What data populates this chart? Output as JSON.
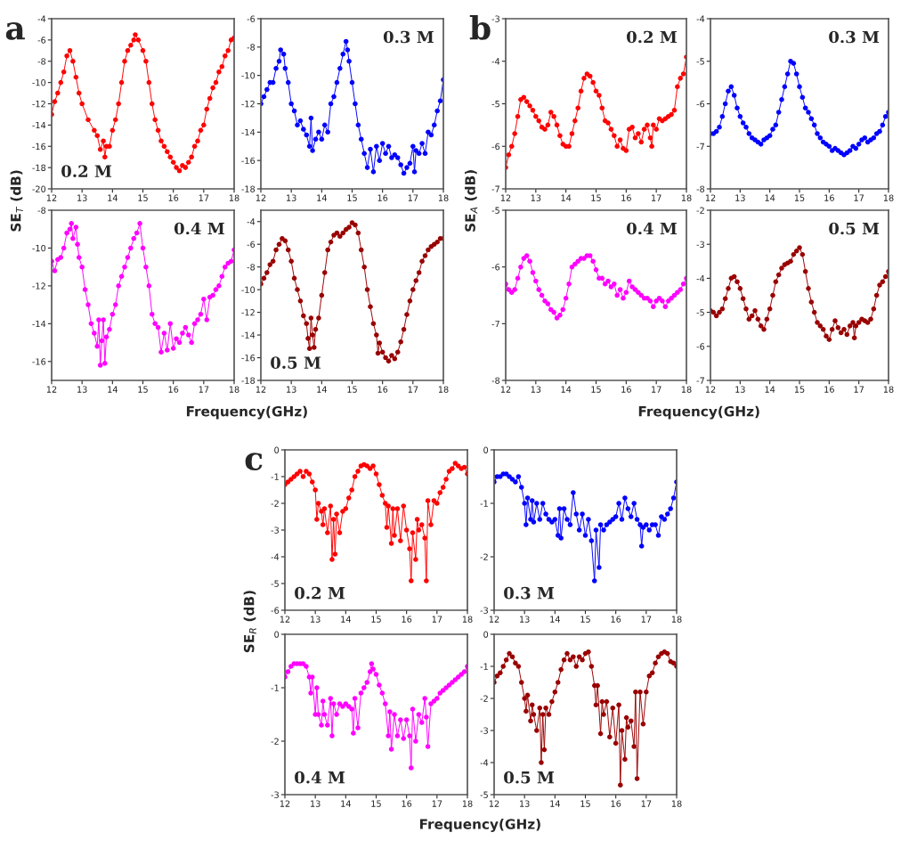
{
  "chart_data": [
    {
      "type": "line",
      "marker": "circle",
      "line_style": "solid",
      "grid": false,
      "ylabel": "SE$_{T}$ (dB)",
      "annotations": [
        "a"
      ],
      "xlim": [
        12,
        18
      ],
      "xticks": [
        12,
        13,
        14,
        15,
        16,
        17,
        18
      ],
      "ylim": [
        -20,
        -4
      ],
      "yticks": [
        -20,
        -18,
        -16,
        -14,
        -12,
        -10,
        -8,
        -6,
        -4
      ],
      "series": [
        {
          "name": "0.2 M",
          "color": "#ff0000",
          "x": [
            12.0,
            12.1,
            12.2,
            12.3,
            12.4,
            12.5,
            12.6,
            12.7,
            12.8,
            12.9,
            13.0,
            13.2,
            13.4,
            13.5,
            13.6,
            13.7,
            13.75,
            13.8,
            13.9,
            14.0,
            14.1,
            14.2,
            14.3,
            14.4,
            14.5,
            14.6,
            14.7,
            14.75,
            14.85,
            15.0,
            15.1,
            15.2,
            15.3,
            15.4,
            15.5,
            15.6,
            15.7,
            15.8,
            15.9,
            16.0,
            16.1,
            16.2,
            16.3,
            16.4,
            16.5,
            16.6,
            16.7,
            16.8,
            16.9,
            17.0,
            17.1,
            17.2,
            17.3,
            17.4,
            17.5,
            17.6,
            17.7,
            17.8,
            17.9,
            18.0
          ],
          "values": [
            -13,
            -11.8,
            -11,
            -10,
            -9,
            -7.5,
            -7,
            -8,
            -9.5,
            -11,
            -12,
            -13.5,
            -14.5,
            -15,
            -16.3,
            -15.5,
            -17,
            -16,
            -16,
            -14.5,
            -13.5,
            -12,
            -10,
            -8,
            -7,
            -6.5,
            -6,
            -5.5,
            -6,
            -7,
            -8,
            -10,
            -12,
            -13.5,
            -14.5,
            -15.5,
            -16,
            -16.5,
            -17,
            -17.5,
            -18,
            -18.3,
            -17.8,
            -18,
            -17.5,
            -17,
            -16,
            -15.5,
            -14.5,
            -14,
            -12.5,
            -11.5,
            -10.5,
            -10,
            -9,
            -8.5,
            -7.5,
            -7,
            -6,
            -5.8
          ]
        }
      ]
    },
    {
      "type": "line",
      "marker": "circle",
      "line_style": "solid",
      "grid": false,
      "xlim": [
        12,
        18
      ],
      "xticks": [
        12,
        13,
        14,
        15,
        16,
        17,
        18
      ],
      "ylim": [
        -18,
        -6
      ],
      "yticks": [
        -18,
        -16,
        -14,
        -12,
        -10,
        -8,
        -6
      ],
      "series": [
        {
          "name": "0.3 M",
          "color": "#0000ff",
          "x": [
            12.0,
            12.1,
            12.2,
            12.3,
            12.4,
            12.5,
            12.6,
            12.65,
            12.75,
            12.8,
            12.9,
            13.0,
            13.1,
            13.2,
            13.3,
            13.4,
            13.5,
            13.6,
            13.65,
            13.7,
            13.8,
            13.9,
            14.0,
            14.1,
            14.2,
            14.3,
            14.4,
            14.5,
            14.6,
            14.7,
            14.8,
            14.85,
            14.9,
            15.0,
            15.1,
            15.2,
            15.3,
            15.4,
            15.5,
            15.6,
            15.7,
            15.8,
            15.9,
            16.0,
            16.1,
            16.2,
            16.3,
            16.4,
            16.5,
            16.6,
            16.7,
            16.8,
            16.9,
            17.0,
            17.05,
            17.1,
            17.2,
            17.3,
            17.4,
            17.5,
            17.6,
            17.7,
            17.8,
            17.9,
            18.0
          ],
          "values": [
            -12,
            -11.5,
            -11,
            -10.5,
            -10.5,
            -9.5,
            -9,
            -8.2,
            -8.5,
            -9.5,
            -10.5,
            -12,
            -12.5,
            -13.5,
            -13.2,
            -13.8,
            -14.2,
            -15,
            -13,
            -15.3,
            -14.5,
            -14,
            -14.5,
            -13.5,
            -14,
            -12,
            -11.5,
            -10.5,
            -9.5,
            -8.5,
            -7.6,
            -8.2,
            -9,
            -10.5,
            -12,
            -13.5,
            -14.5,
            -15.5,
            -16.5,
            -15.2,
            -16.8,
            -15,
            -16,
            -14.8,
            -15.5,
            -15,
            -15.8,
            -15.6,
            -15.8,
            -16.3,
            -16.9,
            -16.5,
            -16.2,
            -15,
            -16.8,
            -15.3,
            -15.5,
            -14.8,
            -15.5,
            -14,
            -14.2,
            -13.5,
            -12.5,
            -11.8,
            -10.3
          ]
        }
      ]
    },
    {
      "type": "line",
      "marker": "circle",
      "line_style": "solid",
      "grid": false,
      "xlabel": "Frequency(GHz)",
      "xlim": [
        12,
        18
      ],
      "xticks": [
        12,
        13,
        14,
        15,
        16,
        17,
        18
      ],
      "ylim": [
        -17,
        -8
      ],
      "yticks": [
        -16,
        -14,
        -12,
        -10,
        -8
      ],
      "series": [
        {
          "name": "0.4 M",
          "color": "#ff00ff",
          "x": [
            12.0,
            12.1,
            12.2,
            12.3,
            12.4,
            12.5,
            12.6,
            12.65,
            12.7,
            12.8,
            12.85,
            12.9,
            13.0,
            13.1,
            13.2,
            13.3,
            13.4,
            13.5,
            13.55,
            13.6,
            13.65,
            13.7,
            13.75,
            13.8,
            13.9,
            14.0,
            14.1,
            14.2,
            14.3,
            14.4,
            14.5,
            14.6,
            14.7,
            14.8,
            14.9,
            15.0,
            15.1,
            15.2,
            15.3,
            15.4,
            15.5,
            15.6,
            15.7,
            15.8,
            15.9,
            16.0,
            16.1,
            16.2,
            16.3,
            16.4,
            16.5,
            16.6,
            16.7,
            16.8,
            16.9,
            17.0,
            17.1,
            17.2,
            17.3,
            17.4,
            17.5,
            17.6,
            17.7,
            17.8,
            17.9,
            18.0
          ],
          "values": [
            -10.7,
            -11.2,
            -10.6,
            -10.5,
            -10,
            -9.2,
            -9,
            -8.7,
            -9.5,
            -8.9,
            -9.8,
            -10.5,
            -11,
            -12.2,
            -13,
            -14,
            -14.5,
            -15.2,
            -13.8,
            -16.2,
            -14.9,
            -13.8,
            -16.1,
            -14.7,
            -14.3,
            -13.5,
            -13,
            -12,
            -11.5,
            -11,
            -10.5,
            -10,
            -9.5,
            -9.2,
            -8.7,
            -10,
            -11,
            -12,
            -13.5,
            -14,
            -14.2,
            -15.5,
            -14.5,
            -15.4,
            -14,
            -15.3,
            -14.8,
            -15,
            -14.5,
            -14.2,
            -14.6,
            -15,
            -14,
            -13.8,
            -13.5,
            -12.7,
            -13.8,
            -12.6,
            -12.5,
            -12.2,
            -12,
            -11.5,
            -11,
            -10.8,
            -10.7,
            -10.1
          ]
        }
      ]
    },
    {
      "type": "line",
      "marker": "circle",
      "line_style": "solid",
      "grid": false,
      "xlim": [
        12,
        18
      ],
      "xticks": [
        12,
        13,
        14,
        15,
        16,
        17,
        18
      ],
      "ylim": [
        -18,
        -3
      ],
      "yticks": [
        -18,
        -16,
        -14,
        -12,
        -10,
        -8,
        -6,
        -4
      ],
      "series": [
        {
          "name": "0.5 M",
          "color": "#990000",
          "x": [
            12.0,
            12.1,
            12.2,
            12.3,
            12.4,
            12.5,
            12.6,
            12.7,
            12.8,
            12.9,
            13.0,
            13.1,
            13.2,
            13.3,
            13.4,
            13.5,
            13.55,
            13.6,
            13.65,
            13.7,
            13.75,
            13.8,
            13.9,
            14.0,
            14.1,
            14.2,
            14.3,
            14.4,
            14.5,
            14.6,
            14.7,
            14.8,
            14.9,
            15.0,
            15.1,
            15.2,
            15.3,
            15.4,
            15.5,
            15.6,
            15.7,
            15.8,
            15.85,
            15.9,
            16.0,
            16.1,
            16.2,
            16.3,
            16.4,
            16.5,
            16.6,
            16.7,
            16.8,
            16.9,
            17.0,
            17.1,
            17.2,
            17.3,
            17.4,
            17.5,
            17.6,
            17.7,
            17.8,
            17.9,
            18.0
          ],
          "values": [
            -9.5,
            -9,
            -8.5,
            -7.8,
            -7.5,
            -6.5,
            -6,
            -5.5,
            -5.7,
            -6.5,
            -7.5,
            -9,
            -10,
            -11,
            -12.3,
            -13,
            -14.3,
            -15.2,
            -12.5,
            -14,
            -15.1,
            -13.5,
            -12.5,
            -10.5,
            -8.5,
            -6.5,
            -5.8,
            -5.2,
            -5,
            -5.3,
            -5,
            -4.7,
            -4.5,
            -4.1,
            -4.3,
            -5,
            -6.5,
            -8,
            -10,
            -11.5,
            -13,
            -14,
            -15.6,
            -14.7,
            -15.5,
            -16,
            -16.3,
            -15.8,
            -16.1,
            -15.5,
            -14.6,
            -13.5,
            -12.2,
            -11,
            -10,
            -9.2,
            -8.5,
            -7.5,
            -7,
            -6.5,
            -6.2,
            -6,
            -5.8,
            -5.5,
            -5.5
          ]
        }
      ]
    },
    {
      "type": "line",
      "marker": "circle",
      "line_style": "solid",
      "grid": false,
      "ylabel": "SE$_{A}$ (dB)",
      "annotations": [
        "b"
      ],
      "xlim": [
        12,
        18
      ],
      "xticks": [
        12,
        13,
        14,
        15,
        16,
        17,
        18
      ],
      "ylim": [
        -7,
        -3
      ],
      "yticks": [
        -7,
        -6,
        -5,
        -4,
        -3
      ],
      "series": [
        {
          "name": "0.2 M",
          "color": "#ff0000",
          "x": [
            12.0,
            12.1,
            12.2,
            12.3,
            12.4,
            12.5,
            12.6,
            12.7,
            12.8,
            12.9,
            13.0,
            13.1,
            13.2,
            13.3,
            13.4,
            13.5,
            13.6,
            13.7,
            13.8,
            13.9,
            14.0,
            14.1,
            14.2,
            14.3,
            14.4,
            14.5,
            14.6,
            14.7,
            14.8,
            14.9,
            15.0,
            15.1,
            15.2,
            15.3,
            15.4,
            15.5,
            15.6,
            15.7,
            15.8,
            15.9,
            16.0,
            16.1,
            16.2,
            16.3,
            16.4,
            16.5,
            16.6,
            16.7,
            16.8,
            16.85,
            16.9,
            17.0,
            17.1,
            17.2,
            17.3,
            17.4,
            17.5,
            17.6,
            17.7,
            17.8,
            17.9,
            18.0
          ],
          "values": [
            -6.5,
            -6.2,
            -6,
            -5.7,
            -5.3,
            -4.9,
            -4.85,
            -4.95,
            -5.05,
            -5.15,
            -5.3,
            -5.4,
            -5.55,
            -5.6,
            -5.5,
            -5.2,
            -5.3,
            -5.5,
            -5.75,
            -5.95,
            -6,
            -6,
            -5.7,
            -5.4,
            -5.1,
            -4.7,
            -4.4,
            -4.3,
            -4.35,
            -4.5,
            -4.7,
            -4.8,
            -5.1,
            -5.4,
            -5.45,
            -5.6,
            -5.75,
            -6,
            -5.85,
            -6.05,
            -6.1,
            -5.6,
            -5.55,
            -5.8,
            -5.7,
            -5.9,
            -5.6,
            -5.5,
            -5.8,
            -6,
            -5.5,
            -5.6,
            -5.35,
            -5.4,
            -5.35,
            -5.3,
            -5.25,
            -5.15,
            -4.6,
            -4.4,
            -4.3,
            -3.9
          ]
        }
      ]
    },
    {
      "type": "line",
      "marker": "circle",
      "line_style": "solid",
      "grid": false,
      "xlim": [
        12,
        18
      ],
      "xticks": [
        12,
        13,
        14,
        15,
        16,
        17,
        18
      ],
      "ylim": [
        -8,
        -4
      ],
      "yticks": [
        -8,
        -7,
        -6,
        -5,
        -4
      ],
      "series": [
        {
          "name": "0.3 M",
          "color": "#0000ff",
          "x": [
            12.0,
            12.1,
            12.2,
            12.3,
            12.4,
            12.5,
            12.6,
            12.7,
            12.8,
            12.9,
            13.0,
            13.1,
            13.2,
            13.3,
            13.4,
            13.5,
            13.6,
            13.7,
            13.8,
            13.9,
            14.0,
            14.1,
            14.2,
            14.3,
            14.4,
            14.5,
            14.6,
            14.7,
            14.8,
            14.9,
            15.0,
            15.1,
            15.2,
            15.3,
            15.4,
            15.5,
            15.6,
            15.7,
            15.8,
            15.9,
            16.0,
            16.1,
            16.2,
            16.3,
            16.4,
            16.5,
            16.6,
            16.7,
            16.8,
            16.9,
            17.0,
            17.1,
            17.2,
            17.3,
            17.4,
            17.5,
            17.6,
            17.7,
            17.8,
            17.9,
            18.0
          ],
          "values": [
            -6.7,
            -6.7,
            -6.65,
            -6.55,
            -6.3,
            -6.0,
            -5.7,
            -5.6,
            -5.8,
            -6.1,
            -6.3,
            -6.45,
            -6.55,
            -6.7,
            -6.8,
            -6.85,
            -6.9,
            -6.95,
            -6.85,
            -6.8,
            -6.75,
            -6.6,
            -6.5,
            -6.2,
            -5.9,
            -5.6,
            -5.3,
            -5.0,
            -5.05,
            -5.3,
            -5.6,
            -5.85,
            -6.1,
            -6.2,
            -6.35,
            -6.5,
            -6.7,
            -6.8,
            -6.9,
            -6.95,
            -7.0,
            -7.1,
            -7.05,
            -7.1,
            -7.15,
            -7.2,
            -7.15,
            -7.1,
            -7.0,
            -7.05,
            -6.95,
            -6.85,
            -6.8,
            -6.9,
            -6.85,
            -6.8,
            -6.7,
            -6.65,
            -6.5,
            -6.3,
            -6.2
          ]
        }
      ]
    },
    {
      "type": "line",
      "marker": "circle",
      "line_style": "solid",
      "grid": false,
      "xlabel": "Frequency(GHz)",
      "xlim": [
        12,
        18
      ],
      "xticks": [
        12,
        13,
        14,
        15,
        16,
        17,
        18
      ],
      "ylim": [
        -8,
        -5
      ],
      "yticks": [
        -8,
        -7,
        -6,
        -5
      ],
      "series": [
        {
          "name": "0.4 M",
          "color": "#ff00ff",
          "x": [
            12.0,
            12.1,
            12.2,
            12.3,
            12.4,
            12.5,
            12.6,
            12.7,
            12.8,
            12.9,
            13.0,
            13.1,
            13.2,
            13.3,
            13.4,
            13.5,
            13.6,
            13.7,
            13.8,
            13.9,
            14.0,
            14.1,
            14.2,
            14.3,
            14.4,
            14.5,
            14.6,
            14.7,
            14.8,
            14.9,
            15.0,
            15.1,
            15.2,
            15.3,
            15.4,
            15.5,
            15.6,
            15.7,
            15.8,
            15.9,
            16.0,
            16.1,
            16.2,
            16.3,
            16.4,
            16.5,
            16.6,
            16.7,
            16.8,
            16.9,
            17.0,
            17.1,
            17.2,
            17.3,
            17.4,
            17.5,
            17.6,
            17.7,
            17.8,
            17.9,
            18.0
          ],
          "values": [
            -6.3,
            -6.4,
            -6.45,
            -6.4,
            -6.2,
            -6,
            -5.85,
            -5.8,
            -5.9,
            -6.1,
            -6.25,
            -6.4,
            -6.5,
            -6.6,
            -6.65,
            -6.75,
            -6.8,
            -6.9,
            -6.85,
            -6.75,
            -6.55,
            -6.3,
            -6.0,
            -5.95,
            -5.9,
            -5.85,
            -5.85,
            -5.8,
            -5.8,
            -5.9,
            -6.05,
            -6.2,
            -6.2,
            -6.3,
            -6.25,
            -6.35,
            -6.3,
            -6.5,
            -6.4,
            -6.55,
            -6.45,
            -6.25,
            -6.35,
            -6.4,
            -6.45,
            -6.5,
            -6.55,
            -6.55,
            -6.6,
            -6.7,
            -6.6,
            -6.55,
            -6.6,
            -6.7,
            -6.6,
            -6.55,
            -6.5,
            -6.45,
            -6.4,
            -6.3,
            -6.2
          ]
        }
      ]
    },
    {
      "type": "line",
      "marker": "circle",
      "line_style": "solid",
      "grid": false,
      "xlim": [
        12,
        18
      ],
      "xticks": [
        12,
        13,
        14,
        15,
        16,
        17,
        18
      ],
      "ylim": [
        -7,
        -2
      ],
      "yticks": [
        -7,
        -6,
        -5,
        -4,
        -3,
        -2
      ],
      "series": [
        {
          "name": "0.5 M",
          "color": "#990000",
          "x": [
            12.0,
            12.1,
            12.2,
            12.3,
            12.4,
            12.5,
            12.6,
            12.7,
            12.8,
            12.9,
            13.0,
            13.1,
            13.2,
            13.3,
            13.4,
            13.5,
            13.6,
            13.7,
            13.8,
            13.9,
            14.0,
            14.1,
            14.2,
            14.3,
            14.4,
            14.5,
            14.6,
            14.7,
            14.8,
            14.9,
            15.0,
            15.1,
            15.2,
            15.3,
            15.4,
            15.5,
            15.6,
            15.7,
            15.8,
            15.9,
            16.0,
            16.1,
            16.2,
            16.3,
            16.4,
            16.5,
            16.6,
            16.7,
            16.8,
            16.85,
            16.9,
            17.0,
            17.1,
            17.2,
            17.3,
            17.4,
            17.5,
            17.6,
            17.7,
            17.8,
            17.9,
            18.0
          ],
          "values": [
            -4.95,
            -5.0,
            -5.1,
            -5.0,
            -4.9,
            -4.6,
            -4.3,
            -4.0,
            -3.95,
            -4.1,
            -4.3,
            -4.6,
            -4.9,
            -5.2,
            -5.1,
            -4.95,
            -5.2,
            -5.4,
            -5.5,
            -5.2,
            -4.9,
            -4.5,
            -4.1,
            -3.9,
            -3.7,
            -3.6,
            -3.55,
            -3.5,
            -3.3,
            -3.2,
            -3.1,
            -3.3,
            -3.8,
            -4.3,
            -4.7,
            -5.0,
            -5.3,
            -5.4,
            -5.5,
            -5.7,
            -5.8,
            -5.5,
            -5.25,
            -5.45,
            -5.6,
            -5.5,
            -5.65,
            -5.4,
            -5.3,
            -5.75,
            -5.4,
            -5.3,
            -5.2,
            -5.25,
            -5.3,
            -5.2,
            -4.9,
            -4.5,
            -4.2,
            -4.1,
            -3.95,
            -3.8
          ]
        }
      ]
    },
    {
      "type": "line",
      "marker": "circle",
      "line_style": "solid",
      "grid": false,
      "ylabel": "SE$_{R}$ (dB)",
      "annotations": [
        "c"
      ],
      "xlim": [
        12,
        18
      ],
      "xticks": [
        12,
        13,
        14,
        15,
        16,
        17,
        18
      ],
      "ylim": [
        -6,
        0
      ],
      "yticks": [
        -6,
        -5,
        -4,
        -3,
        -2,
        -1,
        0
      ],
      "series": [
        {
          "name": "0.2 M",
          "color": "#ff0000",
          "x": [
            12.0,
            12.1,
            12.2,
            12.3,
            12.4,
            12.5,
            12.6,
            12.7,
            12.8,
            12.9,
            13.0,
            13.05,
            13.1,
            13.2,
            13.25,
            13.3,
            13.4,
            13.5,
            13.55,
            13.6,
            13.65,
            13.7,
            13.8,
            13.9,
            14.0,
            14.1,
            14.2,
            14.3,
            14.4,
            14.5,
            14.6,
            14.7,
            14.8,
            14.9,
            15.0,
            15.1,
            15.2,
            15.3,
            15.35,
            15.4,
            15.5,
            15.55,
            15.6,
            15.7,
            15.8,
            15.9,
            16.0,
            16.1,
            16.15,
            16.2,
            16.3,
            16.35,
            16.4,
            16.5,
            16.6,
            16.65,
            16.7,
            16.8,
            16.9,
            17.0,
            17.1,
            17.2,
            17.3,
            17.4,
            17.5,
            17.6,
            17.7,
            17.8,
            17.9,
            18.0
          ],
          "values": [
            -1.3,
            -1.2,
            -1.1,
            -1.0,
            -0.9,
            -0.8,
            -1.0,
            -0.8,
            -0.9,
            -1.2,
            -1.5,
            -2.6,
            -2.0,
            -2.3,
            -2.8,
            -2.2,
            -3.1,
            -2.1,
            -4.1,
            -2.6,
            -3.9,
            -2.4,
            -3.1,
            -2.3,
            -2.2,
            -1.8,
            -1.5,
            -1.0,
            -0.8,
            -0.6,
            -0.55,
            -0.6,
            -0.7,
            -0.6,
            -0.9,
            -1.3,
            -1.7,
            -2.0,
            -2.9,
            -2.1,
            -3.5,
            -2.2,
            -3.2,
            -2.2,
            -3.4,
            -2.1,
            -3.0,
            -3.7,
            -4.9,
            -3.1,
            -4.1,
            -2.6,
            -3.0,
            -2.8,
            -3.3,
            -4.9,
            -1.9,
            -2.8,
            -1.9,
            -2.0,
            -1.6,
            -1.4,
            -1.1,
            -0.8,
            -0.7,
            -0.5,
            -0.6,
            -0.7,
            -0.65,
            -0.9
          ]
        }
      ]
    },
    {
      "type": "line",
      "marker": "circle",
      "line_style": "solid",
      "grid": false,
      "xlim": [
        12,
        18
      ],
      "xticks": [
        12,
        13,
        14,
        15,
        16,
        17,
        18
      ],
      "ylim": [
        -3,
        0
      ],
      "yticks": [
        -3,
        -2,
        -1,
        0
      ],
      "series": [
        {
          "name": "0.3 M",
          "color": "#0000ff",
          "x": [
            12.0,
            12.1,
            12.2,
            12.3,
            12.4,
            12.5,
            12.6,
            12.7,
            12.8,
            12.9,
            13.0,
            13.05,
            13.1,
            13.2,
            13.25,
            13.3,
            13.4,
            13.5,
            13.6,
            13.7,
            13.8,
            13.9,
            14.0,
            14.1,
            14.15,
            14.2,
            14.3,
            14.4,
            14.5,
            14.6,
            14.7,
            14.8,
            14.9,
            15.0,
            15.1,
            15.2,
            15.3,
            15.35,
            15.45,
            15.5,
            15.6,
            15.7,
            15.8,
            15.9,
            16.0,
            16.1,
            16.2,
            16.3,
            16.4,
            16.5,
            16.6,
            16.7,
            16.8,
            16.85,
            16.9,
            17.0,
            17.1,
            17.2,
            17.3,
            17.4,
            17.5,
            17.6,
            17.7,
            17.8,
            17.9,
            18.0
          ],
          "values": [
            -0.6,
            -0.5,
            -0.5,
            -0.45,
            -0.45,
            -0.5,
            -0.55,
            -0.6,
            -0.5,
            -0.7,
            -1.0,
            -1.4,
            -0.9,
            -1.3,
            -0.95,
            -1.35,
            -1.0,
            -1.3,
            -1.0,
            -1.2,
            -1.3,
            -1.35,
            -1.3,
            -1.6,
            -1.1,
            -1.65,
            -1.1,
            -1.3,
            -1.4,
            -0.8,
            -1.2,
            -1.5,
            -1.2,
            -1.6,
            -1.3,
            -1.7,
            -2.45,
            -1.5,
            -2.2,
            -1.4,
            -1.5,
            -1.4,
            -1.35,
            -1.3,
            -1.25,
            -1.0,
            -1.3,
            -0.9,
            -1.1,
            -1.25,
            -1.0,
            -1.3,
            -1.4,
            -1.8,
            -1.45,
            -1.4,
            -1.5,
            -1.4,
            -1.4,
            -1.6,
            -1.25,
            -1.3,
            -1.2,
            -1.1,
            -0.9,
            -0.6
          ]
        }
      ]
    },
    {
      "type": "line",
      "marker": "circle",
      "line_style": "solid",
      "grid": false,
      "xlabel": "Frequency(GHz)",
      "xlim": [
        12,
        18
      ],
      "xticks": [
        12,
        13,
        14,
        15,
        16,
        17,
        18
      ],
      "ylim": [
        -3,
        0
      ],
      "yticks": [
        -3,
        -2,
        -1,
        0
      ],
      "series": [
        {
          "name": "0.4 M",
          "color": "#ff00ff",
          "x": [
            12.0,
            12.1,
            12.2,
            12.3,
            12.4,
            12.5,
            12.6,
            12.7,
            12.8,
            12.85,
            12.9,
            13.0,
            13.05,
            13.1,
            13.2,
            13.25,
            13.3,
            13.4,
            13.5,
            13.55,
            13.6,
            13.7,
            13.8,
            13.9,
            14.0,
            14.1,
            14.2,
            14.25,
            14.3,
            14.4,
            14.5,
            14.6,
            14.7,
            14.8,
            14.85,
            14.9,
            15.0,
            15.1,
            15.2,
            15.3,
            15.4,
            15.45,
            15.5,
            15.6,
            15.7,
            15.8,
            15.9,
            16.0,
            16.1,
            16.15,
            16.2,
            16.3,
            16.4,
            16.5,
            16.6,
            16.65,
            16.7,
            16.8,
            16.9,
            17.0,
            17.1,
            17.2,
            17.3,
            17.4,
            17.5,
            17.6,
            17.7,
            17.8,
            17.9,
            18.0
          ],
          "values": [
            -0.8,
            -0.7,
            -0.6,
            -0.55,
            -0.55,
            -0.55,
            -0.55,
            -0.6,
            -0.8,
            -1.1,
            -0.8,
            -1.5,
            -1.0,
            -1.5,
            -1.7,
            -1.25,
            -1.5,
            -1.7,
            -1.2,
            -1.9,
            -1.3,
            -1.5,
            -1.3,
            -1.35,
            -1.3,
            -1.35,
            -1.4,
            -1.85,
            -1.2,
            -1.75,
            -1.1,
            -1.0,
            -0.9,
            -0.7,
            -0.55,
            -0.65,
            -0.75,
            -0.95,
            -1.1,
            -1.3,
            -1.9,
            -1.45,
            -2.15,
            -1.5,
            -1.9,
            -1.6,
            -1.95,
            -1.6,
            -1.9,
            -2.5,
            -1.4,
            -2.0,
            -1.5,
            -1.65,
            -1.2,
            -1.55,
            -2.1,
            -1.3,
            -1.25,
            -1.2,
            -1.1,
            -1.05,
            -1.0,
            -0.95,
            -0.9,
            -0.85,
            -0.8,
            -0.75,
            -0.7,
            -0.6
          ]
        }
      ]
    },
    {
      "type": "line",
      "marker": "circle",
      "line_style": "solid",
      "grid": false,
      "xlim": [
        12,
        18
      ],
      "xticks": [
        12,
        13,
        14,
        15,
        16,
        17,
        18
      ],
      "ylim": [
        -5,
        0
      ],
      "yticks": [
        -5,
        -4,
        -3,
        -2,
        -1,
        0
      ],
      "series": [
        {
          "name": "0.5 M",
          "color": "#990000",
          "x": [
            12.0,
            12.1,
            12.2,
            12.3,
            12.4,
            12.5,
            12.6,
            12.7,
            12.8,
            12.9,
            13.0,
            13.05,
            13.1,
            13.2,
            13.25,
            13.3,
            13.4,
            13.5,
            13.55,
            13.6,
            13.65,
            13.7,
            13.8,
            13.9,
            14.0,
            14.1,
            14.2,
            14.3,
            14.4,
            14.5,
            14.6,
            14.7,
            14.8,
            14.9,
            15.0,
            15.1,
            15.2,
            15.3,
            15.35,
            15.4,
            15.5,
            15.55,
            15.6,
            15.7,
            15.8,
            15.9,
            16.0,
            16.1,
            16.15,
            16.2,
            16.3,
            16.35,
            16.4,
            16.5,
            16.6,
            16.65,
            16.7,
            16.8,
            16.9,
            17.0,
            17.1,
            17.2,
            17.3,
            17.4,
            17.5,
            17.6,
            17.7,
            17.8,
            17.9,
            18.0
          ],
          "values": [
            -1.5,
            -1.3,
            -1.2,
            -1.0,
            -0.8,
            -0.6,
            -0.7,
            -0.9,
            -1.0,
            -1.5,
            -2.0,
            -2.4,
            -1.9,
            -2.7,
            -2.2,
            -2.5,
            -3.0,
            -2.3,
            -4.0,
            -2.5,
            -3.6,
            -2.3,
            -2.5,
            -2.1,
            -1.8,
            -1.5,
            -1.1,
            -0.8,
            -0.6,
            -0.8,
            -0.7,
            -1.0,
            -0.7,
            -0.8,
            -0.6,
            -0.55,
            -1.0,
            -1.6,
            -2.2,
            -1.6,
            -3.1,
            -2.1,
            -2.5,
            -2.1,
            -3.2,
            -2.3,
            -3.4,
            -2.2,
            -4.7,
            -3.0,
            -3.9,
            -2.6,
            -2.9,
            -2.7,
            -3.5,
            -1.8,
            -4.5,
            -1.8,
            -2.8,
            -1.8,
            -1.3,
            -1.2,
            -0.9,
            -0.7,
            -0.6,
            -0.55,
            -0.6,
            -0.85,
            -0.9,
            -1.0
          ]
        }
      ]
    }
  ]
}
